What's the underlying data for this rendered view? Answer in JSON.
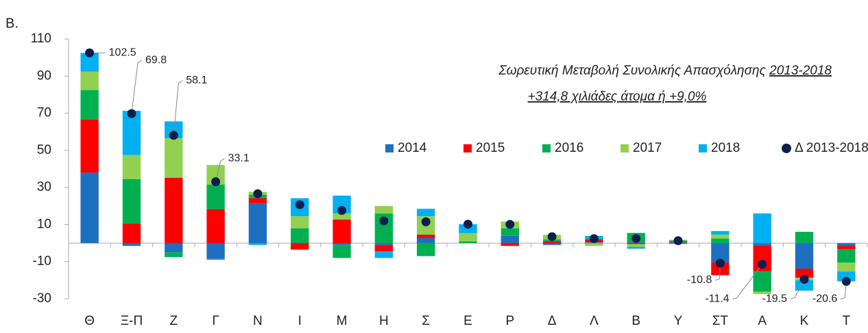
{
  "chart_data": {
    "type": "bar",
    "stacked": true,
    "panel_label": "Β.",
    "annotations": [
      "Σωρευτική Μεταβολή Συνολικής Απασχόλησης",
      "2013-2018",
      "+314,8 χιλιάδες άτομα ή +9,0%"
    ],
    "categories": [
      "Θ",
      "Ξ-Π",
      "Ζ",
      "Γ",
      "Ν",
      "Ι",
      "Μ",
      "Η",
      "Σ",
      "Ε",
      "Ρ",
      "Δ",
      "Λ",
      "Β",
      "Υ",
      "ΣΤ",
      "Α",
      "Κ",
      "Τ"
    ],
    "series": [
      {
        "name": "2014",
        "color": "#1f6fc0",
        "values": [
          38,
          -1.5,
          -5,
          -8.5,
          21.6,
          0,
          -1,
          -1,
          2.8,
          0,
          4,
          -1,
          0.5,
          0.5,
          0.5,
          -10.5,
          -1.2,
          -13.8,
          -1.3
        ]
      },
      {
        "name": "2015",
        "color": "#ff0000",
        "values": [
          28.5,
          10.5,
          35.2,
          18.3,
          2.6,
          -3.5,
          12.7,
          -3.5,
          1.8,
          0,
          -1.5,
          1,
          1.5,
          -0.5,
          0.3,
          -6.8,
          -14,
          -4.8,
          -1.8
        ]
      },
      {
        "name": "2016",
        "color": "#00b050",
        "values": [
          16,
          24,
          -2.5,
          13.2,
          1.8,
          8,
          -7,
          16,
          -7,
          1,
          4,
          1,
          0.5,
          5,
          0.5,
          2.4,
          -11,
          6.1,
          -7.4
        ]
      },
      {
        "name": "2017",
        "color": "#92d050",
        "values": [
          10,
          13,
          21.3,
          10.6,
          1.6,
          6.5,
          3.3,
          4,
          9.9,
          4.4,
          3.6,
          2.5,
          -1.5,
          -1.5,
          0.5,
          2.2,
          -1.2,
          -1.4,
          -4.8
        ]
      },
      {
        "name": "2018",
        "color": "#00b0f0",
        "values": [
          10,
          23.8,
          9.1,
          -0.5,
          -1,
          9.7,
          9.6,
          -3.5,
          4,
          4.8,
          0,
          0,
          1.4,
          -1,
          -0.5,
          1.9,
          16,
          -5.6,
          -5.3
        ]
      },
      {
        "name": "Δ 2013-2018",
        "type": "scatter",
        "color": "#0d1f4f",
        "values": [
          102.5,
          69.8,
          58.1,
          33.1,
          26.6,
          20.7,
          17.6,
          12,
          11.5,
          10.2,
          10.1,
          3.5,
          2.4,
          2.5,
          1.3,
          -10.8,
          -11.4,
          -19.5,
          -20.6
        ],
        "value_labels": [
          "102.5",
          "69.8",
          "58.1",
          "33.1",
          null,
          null,
          null,
          null,
          null,
          null,
          null,
          null,
          null,
          null,
          null,
          "-10.8",
          "-11.4",
          "-19.5",
          "-20.6"
        ]
      }
    ],
    "ylim": [
      -30,
      110
    ],
    "yticks": [
      -30,
      -10,
      10,
      30,
      50,
      70,
      90,
      110
    ],
    "grid": false
  }
}
